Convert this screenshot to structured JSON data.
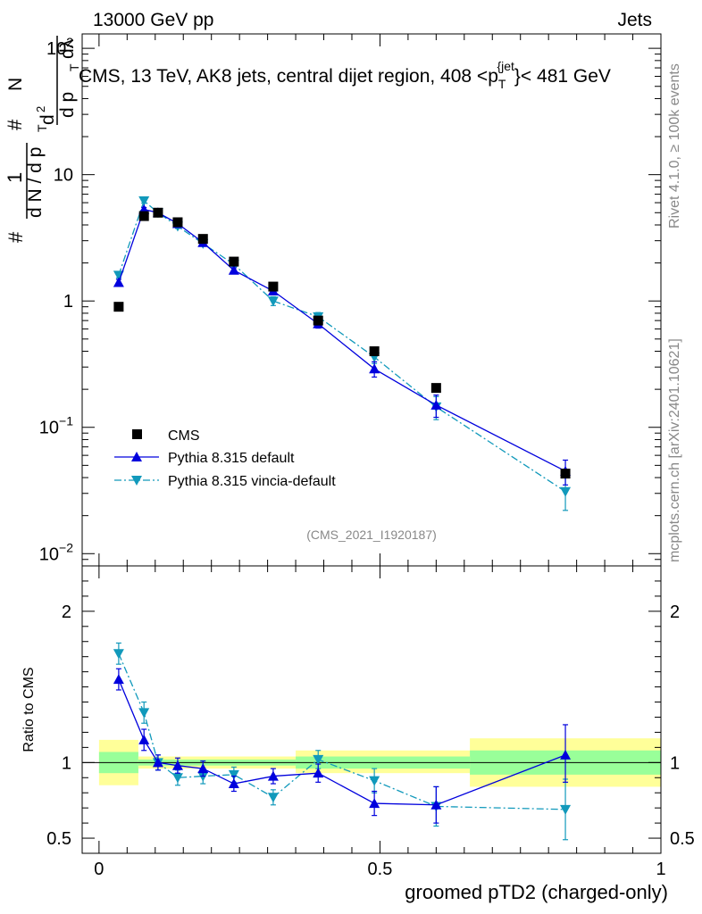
{
  "header": {
    "left": "13000 GeV pp",
    "right": "Jets"
  },
  "title_parts": {
    "prefix": "CMS, 13 TeV, AK8 jets, central dijet region, 408 <p",
    "sub": "T",
    "sup": "{jet",
    "suffix": "}< 481 GeV"
  },
  "side_labels": {
    "rivet": "Rivet 4.1.0, ≥ 100k events",
    "mcplots": "mcplots.cern.ch [arXiv:2401.10621]"
  },
  "analysis_id": "(CMS_2021_I1920187)",
  "colors": {
    "cms": "#000000",
    "default": "#0000dd",
    "vincia": "#1199bb",
    "band_yellow": "#ffff99",
    "band_green": "#99ff99"
  },
  "chart_data": [
    {
      "type": "scatter",
      "name": "main",
      "ylabel": "# 1/(dN / dp_T) # d²N/(dp_T dλ)",
      "ylabel_parts": {
        "hash": "#",
        "one": "1",
        "den": "d N / d p",
        "t": "T",
        "num": "d",
        "n2": "2",
        "numN": "N",
        "den2": "d p",
        "lam": "dλ"
      },
      "yscale": "log",
      "ylim": [
        0.008,
        130
      ],
      "xlim": [
        -0.03,
        1.0
      ],
      "y_ticks": [
        {
          "value": 0.01,
          "base": "10",
          "exp": "−2"
        },
        {
          "value": 0.1,
          "base": "10",
          "exp": "−1"
        },
        {
          "value": 1,
          "base": "1",
          "exp": ""
        },
        {
          "value": 10,
          "base": "10",
          "exp": ""
        },
        {
          "value": 100,
          "base": "10",
          "exp": "2"
        }
      ],
      "legend": {
        "position": "bottom-left",
        "entries": [
          "CMS",
          "Pythia 8.315 default",
          "Pythia 8.315 vincia-default"
        ]
      },
      "series": [
        {
          "name": "CMS",
          "style": "square",
          "x": [
            0.035,
            0.08,
            0.105,
            0.14,
            0.185,
            0.24,
            0.31,
            0.39,
            0.49,
            0.6,
            0.83
          ],
          "y": [
            0.9,
            4.7,
            5.0,
            4.2,
            3.1,
            2.05,
            1.3,
            0.7,
            0.4,
            0.205,
            0.043
          ]
        },
        {
          "name": "Pythia 8.315 default",
          "style": "triangle-up",
          "x": [
            0.035,
            0.08,
            0.105,
            0.14,
            0.185,
            0.24,
            0.31,
            0.39,
            0.49,
            0.6,
            0.83
          ],
          "y": [
            1.4,
            5.3,
            5.0,
            4.1,
            2.9,
            1.75,
            1.2,
            0.66,
            0.29,
            0.15,
            0.045
          ],
          "err_lo": [
            0.08,
            0.2,
            0.2,
            0.15,
            0.12,
            0.08,
            0.08,
            0.05,
            0.04,
            0.03,
            0.01
          ],
          "err_hi": [
            0.08,
            0.2,
            0.2,
            0.15,
            0.12,
            0.08,
            0.08,
            0.05,
            0.04,
            0.03,
            0.01
          ]
        },
        {
          "name": "Pythia 8.315 vincia-default",
          "style": "triangle-down",
          "x": [
            0.035,
            0.08,
            0.105,
            0.14,
            0.185,
            0.24,
            0.31,
            0.39,
            0.49,
            0.6,
            0.83
          ],
          "y": [
            1.6,
            6.2,
            5.0,
            3.9,
            2.85,
            1.95,
            1.0,
            0.75,
            0.36,
            0.145,
            0.031
          ],
          "err_lo": [
            0.08,
            0.25,
            0.2,
            0.15,
            0.12,
            0.08,
            0.08,
            0.06,
            0.04,
            0.03,
            0.009
          ],
          "err_hi": [
            0.08,
            0.25,
            0.2,
            0.15,
            0.12,
            0.08,
            0.08,
            0.06,
            0.04,
            0.03,
            0.009
          ]
        }
      ]
    },
    {
      "type": "scatter",
      "name": "ratio",
      "ylabel": "Ratio to CMS",
      "xlabel": "groomed pTD2 (charged-only)",
      "ylim": [
        0.4,
        2.3
      ],
      "xlim": [
        -0.03,
        1.0
      ],
      "y_ticks": [
        0.5,
        1,
        2
      ],
      "x_ticks": [
        {
          "value": 0,
          "label": "0"
        },
        {
          "value": 0.5,
          "label": "0.5"
        },
        {
          "value": 1,
          "label": "1"
        }
      ],
      "bands": [
        {
          "x0": 0.0,
          "x1": 0.07,
          "y_lo": 0.85,
          "y_hi": 1.15,
          "g_lo": 0.93,
          "g_hi": 1.07
        },
        {
          "x0": 0.07,
          "x1": 0.35,
          "y_lo": 0.96,
          "y_hi": 1.04,
          "g_lo": 0.98,
          "g_hi": 1.02
        },
        {
          "x0": 0.35,
          "x1": 0.66,
          "y_lo": 0.93,
          "y_hi": 1.08,
          "g_lo": 0.96,
          "g_hi": 1.04
        },
        {
          "x0": 0.66,
          "x1": 1.0,
          "y_lo": 0.84,
          "y_hi": 1.16,
          "g_lo": 0.92,
          "g_hi": 1.08
        }
      ],
      "series": [
        {
          "name": "Pythia 8.315 default",
          "style": "triangle-up",
          "x": [
            0.035,
            0.08,
            0.105,
            0.14,
            0.185,
            0.24,
            0.31,
            0.39,
            0.49,
            0.6,
            0.83
          ],
          "y": [
            1.55,
            1.15,
            1.0,
            0.98,
            0.96,
            0.86,
            0.91,
            0.93,
            0.73,
            0.72,
            1.05
          ],
          "err_lo": [
            0.07,
            0.07,
            0.05,
            0.05,
            0.05,
            0.05,
            0.05,
            0.06,
            0.08,
            0.12,
            0.18
          ],
          "err_hi": [
            0.07,
            0.07,
            0.05,
            0.05,
            0.05,
            0.05,
            0.05,
            0.06,
            0.08,
            0.12,
            0.2
          ]
        },
        {
          "name": "Pythia 8.315 vincia-default",
          "style": "triangle-down",
          "x": [
            0.035,
            0.08,
            0.105,
            0.14,
            0.185,
            0.24,
            0.31,
            0.39,
            0.49,
            0.6,
            0.83
          ],
          "y": [
            1.72,
            1.33,
            1.0,
            0.9,
            0.91,
            0.92,
            0.77,
            1.02,
            0.88,
            0.71,
            0.69
          ],
          "err_lo": [
            0.07,
            0.07,
            0.05,
            0.05,
            0.05,
            0.05,
            0.05,
            0.06,
            0.08,
            0.13,
            0.2
          ],
          "err_hi": [
            0.07,
            0.07,
            0.05,
            0.05,
            0.05,
            0.05,
            0.05,
            0.06,
            0.08,
            0.13,
            0.2
          ]
        }
      ]
    }
  ]
}
